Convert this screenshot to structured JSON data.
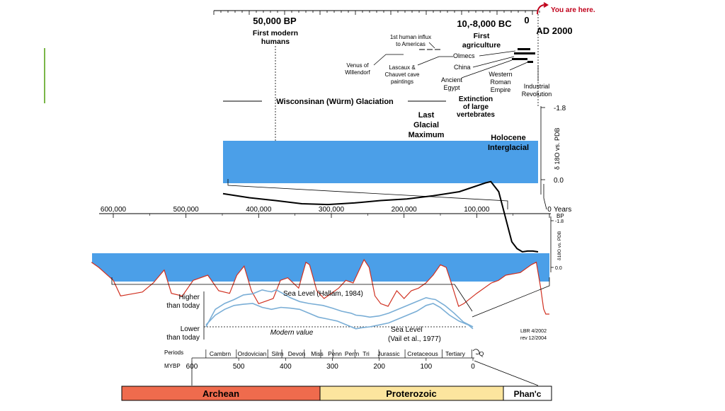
{
  "colors": {
    "warm": "#f07e1a",
    "cold": "#4b9fe8",
    "archean": "#ef6b4d",
    "proterozoic": "#fce59e",
    "phanerozoic": "#ffffff",
    "accent": "#7ab648",
    "you_are_here": "#c0001a",
    "sea_level": "#7aaed6",
    "curve_red": "#d03020"
  },
  "top_panel": {
    "you_are_here": "You are here.",
    "labels": {
      "bp50000": "50,000 BP",
      "first_modern_humans": [
        "First modern",
        "humans"
      ],
      "bc10000": "10,-8,000 BC",
      "first_agriculture": [
        "First",
        "agriculture"
      ],
      "zero": "0",
      "ad2000": "AD 2000",
      "first_human_influx": [
        "1st human influx",
        "to Americas"
      ],
      "venus": [
        "Venus of",
        "Willendorf"
      ],
      "lascaux": [
        "Lascaux &",
        "Chauvet cave",
        "paintings"
      ],
      "olmecs": "Olmecs",
      "china": "China",
      "ancient_egypt": [
        "Ancient",
        "Egypt"
      ],
      "western_roman_empire": [
        "Western",
        "Roman",
        "Empire"
      ],
      "industrial_revolution": [
        "Industrial",
        "Revolution"
      ],
      "wisconsinan": "Wisconsinan (Würm) Glaciation",
      "extinction": [
        "Extinction",
        "of large",
        "vertebrates"
      ],
      "lgm": [
        "Last",
        "Glacial",
        "Maximum"
      ],
      "holocene": [
        "Holocene",
        "Interglacial"
      ],
      "y_axis_label": "δ 18O vs. PDB",
      "y_top": "-1.8",
      "y_bottom": "0.0"
    }
  },
  "middle_panel": {
    "x_tick_labels": [
      "600,000",
      "500,000",
      "400,000",
      "300,000",
      "200,000",
      "100,000",
      "0"
    ],
    "x_unit": [
      "Years",
      "BP"
    ],
    "y_top": "-1.8",
    "y_bottom": "0.0",
    "y_axis_label": "δ18O vs. PDB"
  },
  "bottom_panel": {
    "higher": [
      "Higher",
      "than today"
    ],
    "lower": [
      "Lower",
      "than today"
    ],
    "modern_value": "Modern value",
    "hallam": "Sea Level (Hallam, 1984)",
    "vail": [
      "Sea Level",
      "(Vail et al., 1977)"
    ],
    "credit": [
      "LBR 4/2002",
      "rev 12/2004"
    ],
    "periods_label": "Periods",
    "mybp_label": "MYBP",
    "periods": [
      "Cambrn",
      "Ordovician",
      "Silrn",
      "Devon",
      "Miss",
      "Penn",
      "Perm",
      "Tri",
      "Jurassic",
      "Cretaceous",
      "Tertiary",
      "Q"
    ],
    "mybp_ticks": [
      "600",
      "500",
      "400",
      "300",
      "200",
      "100",
      "0"
    ],
    "eons": [
      "Archean",
      "Proterozoic",
      "Phan'c"
    ]
  },
  "chart_data": [
    {
      "type": "area",
      "title": "",
      "xlabel": "",
      "ylabel": "δ 18O vs. PDB",
      "xlim": [
        120000,
        0
      ],
      "ylim": [
        0.0,
        -1.8
      ],
      "x": [
        120000,
        110000,
        100000,
        90000,
        80000,
        70000,
        60000,
        50000,
        40000,
        30000,
        20000,
        18000,
        15000,
        13000,
        11000,
        10000,
        8000,
        6000,
        4000,
        2000,
        0
      ],
      "values": [
        -0.35,
        -0.45,
        -0.52,
        -0.6,
        -0.62,
        -0.58,
        -0.52,
        -0.48,
        -0.4,
        -0.3,
        -0.08,
        -0.05,
        -0.3,
        -0.8,
        -1.3,
        -1.55,
        -1.72,
        -1.8,
        -1.78,
        -1.78,
        -1.8
      ]
    },
    {
      "type": "area",
      "title": "",
      "xlabel": "Years BP",
      "ylabel": "δ18O vs. PDB",
      "xlim": [
        600000,
        0
      ],
      "ylim": [
        0.0,
        -1.8
      ],
      "x": [
        630000,
        620000,
        600000,
        590000,
        570000,
        560000,
        545000,
        530000,
        520000,
        505000,
        490000,
        470000,
        455000,
        440000,
        430000,
        420000,
        410000,
        400000,
        390000,
        380000,
        370000,
        360000,
        345000,
        335000,
        330000,
        320000,
        310000,
        300000,
        290000,
        280000,
        270000,
        255000,
        248000,
        240000,
        232000,
        222000,
        210000,
        200000,
        190000,
        180000,
        170000,
        160000,
        150000,
        142000,
        135000,
        125000,
        118000,
        100000,
        80000,
        70000,
        60000,
        40000,
        25000,
        18000,
        12000,
        8000,
        5000,
        0
      ],
      "values": [
        0.2,
        0.0,
        -0.5,
        -1.1,
        -1.0,
        -0.95,
        -0.6,
        -0.1,
        -1.0,
        -1.1,
        -0.5,
        -0.3,
        -0.9,
        -1.0,
        -0.3,
        0.05,
        -0.9,
        -1.4,
        -1.3,
        -1.2,
        -0.5,
        -0.4,
        -0.8,
        0.2,
        0.1,
        -0.9,
        -1.2,
        -1.0,
        -0.8,
        -0.5,
        -0.6,
        0.3,
        0.0,
        -1.1,
        -1.4,
        -1.5,
        -0.9,
        -1.2,
        -0.9,
        -0.8,
        -0.6,
        -0.3,
        0.1,
        0.0,
        -0.6,
        -1.5,
        -1.4,
        -1.0,
        -0.6,
        -0.5,
        -0.3,
        -0.2,
        0.1,
        0.2,
        -0.8,
        -1.6,
        -1.8,
        -1.8
      ]
    },
    {
      "type": "line",
      "title": "",
      "xlabel": "MYBP",
      "ylabel": "",
      "xlim": [
        600,
        0
      ],
      "series": [
        {
          "name": "Sea Level (Hallam, 1984)",
          "x": [
            570,
            550,
            530,
            510,
            490,
            470,
            450,
            440,
            430,
            420,
            400,
            390,
            370,
            350,
            320,
            300,
            280,
            260,
            250,
            235,
            220,
            200,
            180,
            160,
            140,
            120,
            100,
            90,
            80,
            60,
            40,
            20,
            0
          ],
          "values": [
            0.0,
            0.45,
            0.6,
            0.7,
            0.82,
            0.85,
            0.95,
            0.92,
            0.9,
            0.95,
            0.82,
            0.75,
            0.65,
            0.6,
            0.55,
            0.48,
            0.4,
            0.35,
            0.3,
            0.28,
            0.25,
            0.28,
            0.35,
            0.45,
            0.55,
            0.65,
            0.75,
            0.72,
            0.7,
            0.55,
            0.35,
            0.12,
            0.0
          ]
        },
        {
          "name": "Sea Level (Vail et al., 1977)",
          "x": [
            570,
            550,
            530,
            510,
            490,
            470,
            450,
            430,
            410,
            390,
            370,
            350,
            330,
            310,
            290,
            270,
            250,
            235,
            220,
            200,
            180,
            160,
            140,
            120,
            100,
            85,
            70,
            50,
            30,
            10,
            0
          ],
          "values": [
            0.05,
            0.3,
            0.45,
            0.55,
            0.58,
            0.6,
            0.5,
            0.45,
            0.5,
            0.48,
            0.45,
            0.35,
            0.25,
            0.2,
            0.15,
            0.05,
            -0.05,
            -0.02,
            0.0,
            0.05,
            0.1,
            0.2,
            0.3,
            0.4,
            0.55,
            0.6,
            0.5,
            0.3,
            0.15,
            0.05,
            -0.05
          ]
        }
      ]
    }
  ]
}
